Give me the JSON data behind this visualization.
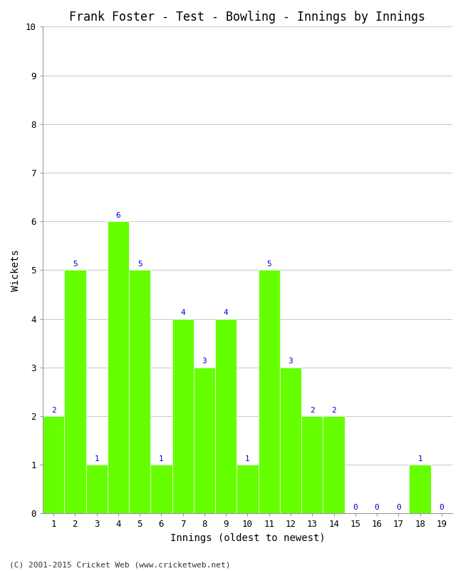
{
  "title": "Frank Foster - Test - Bowling - Innings by Innings",
  "xlabel": "Innings (oldest to newest)",
  "ylabel": "Wickets",
  "categories": [
    "1",
    "2",
    "3",
    "4",
    "5",
    "6",
    "7",
    "8",
    "9",
    "10",
    "11",
    "12",
    "13",
    "14",
    "15",
    "16",
    "17",
    "18",
    "19"
  ],
  "values": [
    2,
    5,
    1,
    6,
    5,
    1,
    4,
    3,
    4,
    1,
    5,
    3,
    2,
    2,
    0,
    0,
    0,
    1,
    0
  ],
  "bar_color": "#66FF00",
  "bar_edge_color": "#66FF00",
  "label_color": "#0000CC",
  "ylim": [
    0,
    10
  ],
  "yticks": [
    0,
    1,
    2,
    3,
    4,
    5,
    6,
    7,
    8,
    9,
    10
  ],
  "grid_color": "#cccccc",
  "bg_color": "#ffffff",
  "title_fontsize": 12,
  "axis_label_fontsize": 10,
  "tick_fontsize": 9,
  "bar_label_fontsize": 8,
  "footer": "(C) 2001-2015 Cricket Web (www.cricketweb.net)"
}
